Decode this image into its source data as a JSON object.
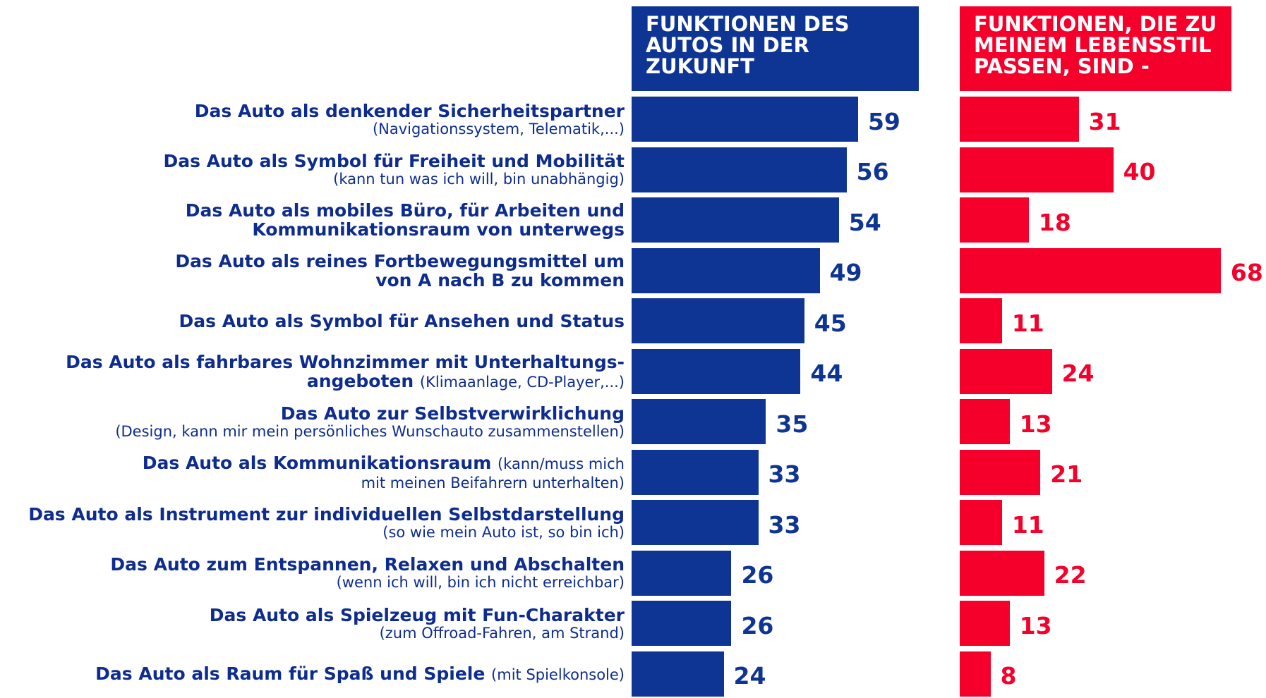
{
  "chart_data": [
    {
      "type": "bar",
      "orientation": "horizontal",
      "title": "FUNKTIONEN DES\nAUTOS IN DER\nZUKUNFT",
      "color": "#0f3594",
      "categories": [
        "Das Auto als denkender Sicherheitspartner",
        "Das Auto als Symbol für Freiheit und Mobilität",
        "Das Auto als mobiles Büro, für Arbeiten und\nKommunikationsraum von unterwegs",
        "Das Auto als reines Fortbewegungsmittel um\nvon A nach B zu kommen",
        "Das Auto als Symbol für Ansehen und Status",
        "Das Auto als fahrbares Wohnzimmer mit Unterhaltungs-\nangeboten",
        "Das Auto zur Selbstverwirklichung",
        "Das Auto als Kommunikationsraum",
        "Das Auto als Instrument zur individuellen Selbstdarstellung",
        "Das Auto zum Entspannen, Relaxen und Abschalten",
        "Das Auto als Spielzeug mit Fun-Charakter",
        "Das Auto als Raum für Spaß und Spiele"
      ],
      "category_notes": [
        "(Navigationssystem, Telematik,...)",
        "(kann tun was ich will, bin unabhängig)",
        null,
        null,
        null,
        "(Klimaanlage, CD-Player,...)",
        "(Design, kann mir mein  persönliches Wunschauto zusammenstellen)",
        "(kann/muss mich\nmit meinen Beifahrern unterhalten)",
        "(so wie mein Auto ist, so bin ich)",
        "(wenn ich will, bin ich nicht erreichbar)",
        "(zum Offroad-Fahren, am Strand)",
        "(mit Spielkonsole)"
      ],
      "note_inline": [
        false,
        false,
        false,
        false,
        false,
        true,
        false,
        true,
        false,
        false,
        false,
        true
      ],
      "values": [
        59,
        56,
        54,
        49,
        45,
        44,
        35,
        33,
        33,
        26,
        26,
        24
      ],
      "xlim": [
        0,
        100
      ]
    },
    {
      "type": "bar",
      "orientation": "horizontal",
      "title": "FUNKTIONEN, DIE ZU\nMEINEM LEBENSSTIL\nPASSEN, SIND -",
      "color": "#f5002b",
      "values": [
        31,
        40,
        18,
        68,
        11,
        24,
        13,
        21,
        11,
        22,
        13,
        8
      ],
      "xlim": [
        0,
        100
      ]
    }
  ]
}
